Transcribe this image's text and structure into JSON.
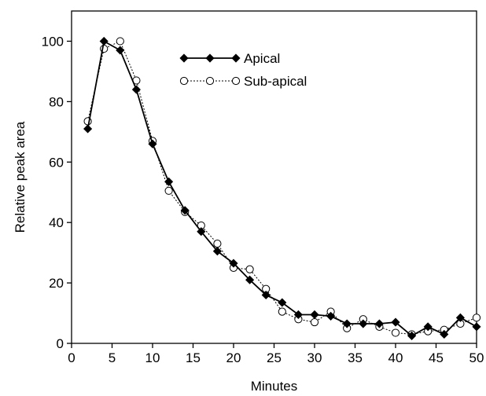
{
  "chart_data": {
    "type": "line",
    "title": "",
    "xlabel": "Minutes",
    "ylabel": "Relative peak area",
    "xlim": [
      0,
      50
    ],
    "ylim": [
      0,
      110
    ],
    "x_ticks": [
      0,
      5,
      10,
      15,
      20,
      25,
      30,
      35,
      40,
      45,
      50
    ],
    "y_ticks": [
      0,
      20,
      40,
      60,
      80,
      100
    ],
    "grid": false,
    "legend_position": "top-center",
    "series": [
      {
        "name": "Apical",
        "marker": "filled-diamond",
        "line_style": "solid",
        "color": "#000000",
        "x": [
          2,
          4,
          6,
          8,
          10,
          12,
          14,
          16,
          18,
          20,
          22,
          24,
          26,
          28,
          30,
          32,
          34,
          36,
          38,
          40,
          42,
          44,
          46,
          48,
          50
        ],
        "y": [
          71,
          100,
          97,
          84,
          66,
          53.5,
          44,
          37,
          30.5,
          26.5,
          21,
          16,
          13.5,
          9.5,
          9.5,
          9,
          6.5,
          6.5,
          6.5,
          7,
          2.5,
          5.5,
          3,
          8.5,
          5.5
        ]
      },
      {
        "name": "Sub-apical",
        "marker": "open-circle",
        "line_style": "dotted",
        "color": "#000000",
        "x": [
          2,
          4,
          6,
          8,
          10,
          12,
          14,
          16,
          18,
          20,
          22,
          24,
          26,
          28,
          30,
          32,
          34,
          36,
          38,
          40,
          42,
          44,
          46,
          48,
          50
        ],
        "y": [
          73.5,
          97.5,
          100,
          87,
          67,
          50.5,
          43.5,
          39,
          33,
          25,
          24.5,
          18,
          10.5,
          8,
          7,
          10.5,
          5,
          8,
          5.5,
          3.5,
          3,
          4,
          4.5,
          6.5,
          8.5
        ]
      }
    ]
  }
}
